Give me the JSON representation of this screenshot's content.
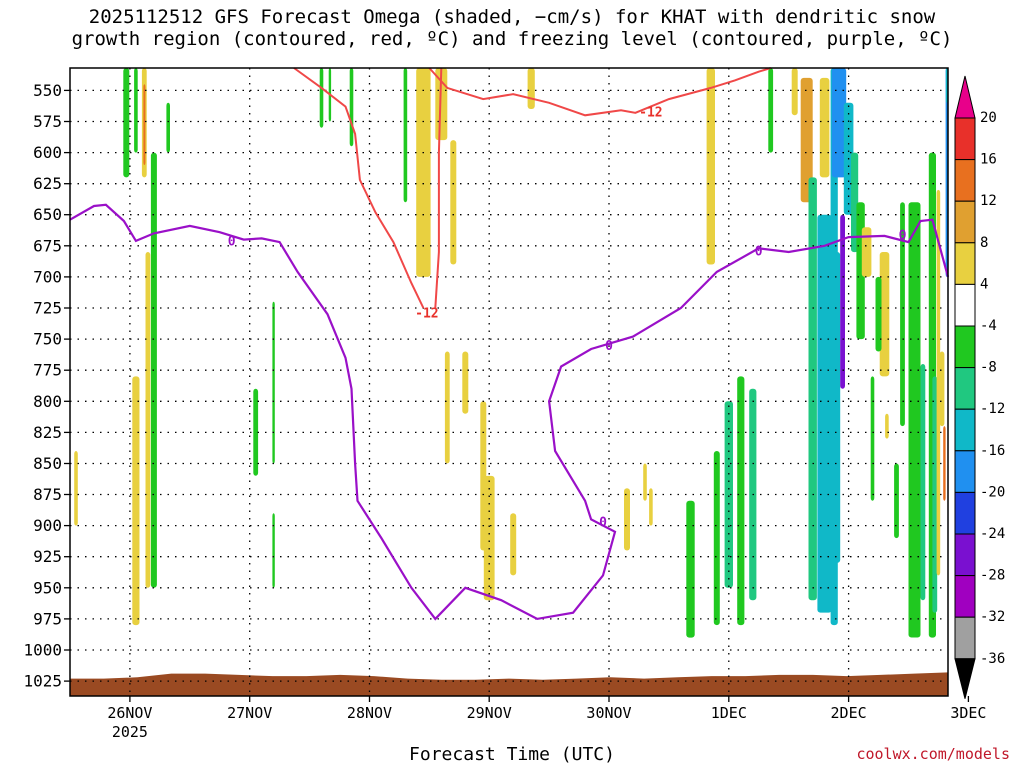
{
  "title_lines": [
    "2025112512 GFS Forecast Omega (shaded, −cm/s) for KHAT with dendritic snow",
    "growth region (contoured, red, ºC) and freezing level (contoured, purple, ºC)"
  ],
  "credit": "coolwx.com/models",
  "colors": {
    "dgz_contour": "#f04848",
    "dgz_label": "#e8302a",
    "freezing_contour": "#9a10c8",
    "terrain": "#9a4a22",
    "frame": "#000000"
  },
  "chart_data": {
    "type": "heatmap",
    "xlabel": "Forecast Time (UTC)",
    "ylabel": "",
    "x_date_labels": [
      "26NOV",
      "27NOV",
      "28NOV",
      "29NOV",
      "30NOV",
      "1DEC",
      "2DEC",
      "3DEC"
    ],
    "x_year_label": "2025",
    "x_range_days": [
      -0.5,
      6.83
    ],
    "y_levels_hPa": [
      550,
      575,
      600,
      625,
      650,
      675,
      700,
      725,
      750,
      775,
      800,
      825,
      850,
      875,
      900,
      925,
      950,
      975,
      1000,
      1025
    ],
    "y_range_hPa": [
      532,
      1037
    ],
    "grid": true,
    "colorbar": {
      "ticks": [
        20,
        16,
        12,
        8,
        4,
        -4,
        -8,
        -12,
        -16,
        -20,
        -24,
        -28,
        -32,
        -36
      ],
      "bins": [
        {
          "color": "#e8008a"
        },
        {
          "color": "#e8302a"
        },
        {
          "color": "#e8701f"
        },
        {
          "color": "#e0a030"
        },
        {
          "color": "#e8d040"
        },
        {
          "color": "#ffffff"
        },
        {
          "color": "#20c820"
        },
        {
          "color": "#20c880"
        },
        {
          "color": "#10b8c8"
        },
        {
          "color": "#2090f0"
        },
        {
          "color": "#2040e0"
        },
        {
          "color": "#7a10d0"
        },
        {
          "color": "#a000c0"
        },
        {
          "color": "#a0a0a0"
        },
        {
          "color": "#000000"
        }
      ]
    },
    "contours": [
      {
        "label": "-12",
        "points": [
          [
            1.37,
            532
          ],
          [
            1.6,
            548
          ],
          [
            1.8,
            563
          ],
          [
            1.88,
            585
          ],
          [
            1.92,
            622
          ],
          [
            2.05,
            648
          ],
          [
            2.2,
            672
          ],
          [
            2.35,
            705
          ],
          [
            2.45,
            725
          ]
        ]
      },
      {
        "label": "-12",
        "points": [
          [
            2.5,
            532
          ],
          [
            2.65,
            548
          ],
          [
            2.95,
            557
          ],
          [
            3.2,
            553
          ],
          [
            3.5,
            560
          ],
          [
            3.8,
            570
          ],
          [
            4.1,
            566
          ],
          [
            4.22,
            568
          ],
          [
            4.5,
            557
          ],
          [
            4.85,
            548
          ],
          [
            5.05,
            542
          ],
          [
            5.25,
            535
          ],
          [
            5.35,
            532
          ]
        ]
      },
      {
        "label": "-12",
        "points": [
          [
            2.6,
            532
          ],
          [
            2.58,
            600
          ],
          [
            2.58,
            680
          ],
          [
            2.55,
            725
          ]
        ]
      },
      {
        "label": "0",
        "points": [
          [
            -0.5,
            654
          ],
          [
            -0.3,
            643
          ],
          [
            -0.2,
            642
          ],
          [
            -0.05,
            655
          ],
          [
            0.05,
            671
          ],
          [
            0.2,
            665
          ],
          [
            0.5,
            659
          ],
          [
            0.75,
            664
          ],
          [
            0.95,
            670
          ],
          [
            1.1,
            669
          ],
          [
            1.25,
            672
          ],
          [
            1.4,
            696
          ],
          [
            1.65,
            730
          ],
          [
            1.8,
            765
          ],
          [
            1.85,
            790
          ],
          [
            1.88,
            850
          ],
          [
            1.9,
            880
          ],
          [
            2.1,
            910
          ],
          [
            2.35,
            950
          ],
          [
            2.55,
            975
          ],
          [
            2.8,
            950
          ],
          [
            3.1,
            960
          ],
          [
            3.4,
            975
          ],
          [
            3.7,
            970
          ],
          [
            3.95,
            940
          ],
          [
            4.05,
            905
          ],
          [
            3.85,
            895
          ],
          [
            3.8,
            880
          ],
          [
            3.55,
            840
          ],
          [
            3.5,
            800
          ],
          [
            3.6,
            772
          ],
          [
            3.85,
            758
          ],
          [
            4.2,
            748
          ],
          [
            4.6,
            725
          ],
          [
            4.9,
            696
          ],
          [
            5.25,
            677
          ],
          [
            5.5,
            680
          ],
          [
            5.8,
            675
          ],
          [
            6.0,
            668
          ],
          [
            6.3,
            667
          ],
          [
            6.5,
            672
          ],
          [
            6.6,
            655
          ],
          [
            6.7,
            654
          ],
          [
            6.83,
            700
          ]
        ]
      }
    ],
    "terrain_top_hPa": 1021
  }
}
